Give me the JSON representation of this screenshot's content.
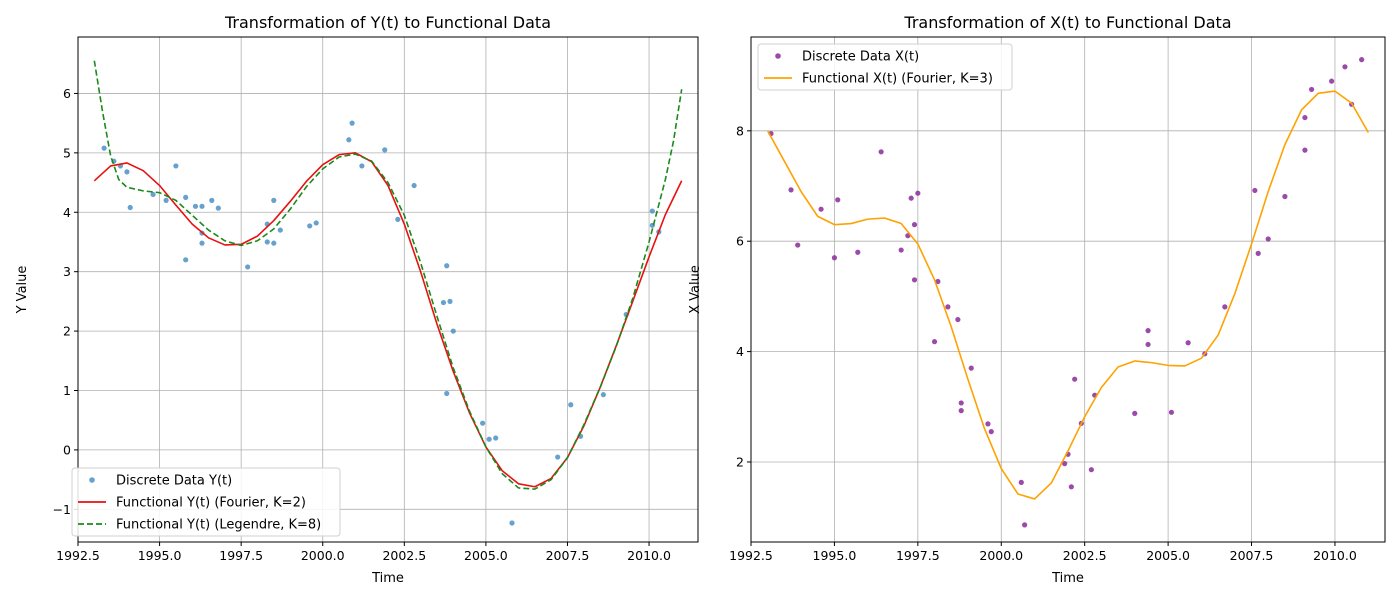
{
  "chart_data": [
    {
      "type": "scatter",
      "title": "Transformation of Y(t) to Functional Data",
      "xlabel": "Time",
      "ylabel": "Y Value",
      "xlim": [
        1992.5,
        2011.5
      ],
      "ylim": [
        -1.55,
        6.95
      ],
      "xticks": [
        1992.5,
        1995.0,
        1997.5,
        2000.0,
        2002.5,
        2005.0,
        2007.5,
        2010.0
      ],
      "xtick_labels": [
        "1992.5",
        "1995.0",
        "1997.5",
        "2000.0",
        "2002.5",
        "2005.0",
        "2007.5",
        "2010.0"
      ],
      "yticks": [
        -1,
        0,
        1,
        2,
        3,
        4,
        5,
        6
      ],
      "ytick_labels": [
        "−1",
        "0",
        "1",
        "2",
        "3",
        "4",
        "5",
        "6"
      ],
      "grid": true,
      "legend_position": "lower-left",
      "series": [
        {
          "name": "Discrete Data Y(t)",
          "kind": "scatter",
          "color": "#4c91c4",
          "points": [
            [
              1993.3,
              5.08
            ],
            [
              1993.6,
              4.86
            ],
            [
              1993.8,
              4.78
            ],
            [
              1994.0,
              4.68
            ],
            [
              1994.1,
              4.08
            ],
            [
              1994.8,
              4.3
            ],
            [
              1995.2,
              4.2
            ],
            [
              1995.5,
              4.78
            ],
            [
              1995.8,
              4.25
            ],
            [
              1995.8,
              3.2
            ],
            [
              1996.1,
              4.1
            ],
            [
              1996.3,
              4.1
            ],
            [
              1996.3,
              3.65
            ],
            [
              1996.3,
              3.48
            ],
            [
              1996.6,
              4.2
            ],
            [
              1996.8,
              4.07
            ],
            [
              1997.7,
              3.08
            ],
            [
              1998.3,
              3.5
            ],
            [
              1998.3,
              3.8
            ],
            [
              1998.5,
              4.2
            ],
            [
              1998.5,
              3.48
            ],
            [
              1998.7,
              3.7
            ],
            [
              1999.6,
              3.77
            ],
            [
              1999.8,
              3.82
            ],
            [
              2000.8,
              5.22
            ],
            [
              2000.9,
              5.5
            ],
            [
              2001.2,
              4.78
            ],
            [
              2001.9,
              5.05
            ],
            [
              2002.3,
              3.88
            ],
            [
              2002.8,
              4.45
            ],
            [
              2003.8,
              3.1
            ],
            [
              2003.7,
              2.48
            ],
            [
              2003.8,
              0.95
            ],
            [
              2003.9,
              2.5
            ],
            [
              2004.0,
              2.0
            ],
            [
              2004.9,
              0.45
            ],
            [
              2005.1,
              0.18
            ],
            [
              2005.3,
              0.2
            ],
            [
              2005.8,
              -1.23
            ],
            [
              2007.2,
              -0.12
            ],
            [
              2007.6,
              0.76
            ],
            [
              2007.9,
              0.23
            ],
            [
              2008.6,
              0.93
            ],
            [
              2009.3,
              2.28
            ],
            [
              2010.1,
              4.02
            ],
            [
              2010.1,
              3.78
            ],
            [
              2010.3,
              3.67
            ]
          ]
        },
        {
          "name": "Functional Y(t) (Fourier, K=2)",
          "kind": "line",
          "color": "#e8110f",
          "dash": "solid",
          "x": [
            1993.0,
            1993.5,
            1994.0,
            1994.5,
            1995.0,
            1995.5,
            1996.0,
            1996.5,
            1997.0,
            1997.5,
            1998.0,
            1998.5,
            1999.0,
            1999.5,
            2000.0,
            2000.5,
            2001.0,
            2001.5,
            2002.0,
            2002.5,
            2003.0,
            2003.5,
            2004.0,
            2004.5,
            2005.0,
            2005.5,
            2006.0,
            2006.5,
            2007.0,
            2007.5,
            2008.0,
            2008.5,
            2009.0,
            2009.5,
            2010.0,
            2010.5,
            2011.0
          ],
          "y": [
            4.53,
            4.78,
            4.83,
            4.7,
            4.45,
            4.12,
            3.8,
            3.57,
            3.45,
            3.46,
            3.6,
            3.86,
            4.18,
            4.52,
            4.8,
            4.97,
            5.0,
            4.85,
            4.45,
            3.8,
            3.0,
            2.12,
            1.32,
            0.62,
            0.05,
            -0.35,
            -0.57,
            -0.62,
            -0.48,
            -0.13,
            0.4,
            1.05,
            1.76,
            2.5,
            3.25,
            3.96,
            4.53
          ]
        },
        {
          "name": "Functional Y(t) (Legendre, K=8)",
          "kind": "line",
          "color": "#1a8a1a",
          "dash": "dashed",
          "x": [
            1993.0,
            1993.25,
            1993.5,
            1993.75,
            1994.0,
            1994.5,
            1995.0,
            1995.5,
            1996.0,
            1996.5,
            1997.0,
            1997.5,
            1998.0,
            1998.5,
            1999.0,
            1999.5,
            2000.0,
            2000.5,
            2001.0,
            2001.5,
            2002.0,
            2002.5,
            2003.0,
            2003.5,
            2004.0,
            2004.5,
            2005.0,
            2005.5,
            2006.0,
            2006.5,
            2007.0,
            2007.5,
            2008.0,
            2008.5,
            2009.0,
            2009.5,
            2010.0,
            2010.5,
            2010.75,
            2011.0
          ],
          "y": [
            6.55,
            5.7,
            4.95,
            4.55,
            4.42,
            4.36,
            4.33,
            4.2,
            3.95,
            3.7,
            3.52,
            3.44,
            3.52,
            3.72,
            4.05,
            4.43,
            4.73,
            4.93,
            4.98,
            4.86,
            4.5,
            3.95,
            3.15,
            2.25,
            1.38,
            0.65,
            0.05,
            -0.4,
            -0.64,
            -0.66,
            -0.5,
            -0.13,
            0.42,
            1.05,
            1.75,
            2.55,
            3.5,
            4.55,
            5.2,
            6.07
          ]
        }
      ]
    },
    {
      "type": "scatter",
      "title": "Transformation of X(t) to Functional Data",
      "xlabel": "Time",
      "ylabel": "X Value",
      "xlim": [
        1992.5,
        2011.5
      ],
      "ylim": [
        0.55,
        9.7
      ],
      "xticks": [
        1992.5,
        1995.0,
        1997.5,
        2000.0,
        2002.5,
        2005.0,
        2007.5,
        2010.0
      ],
      "xtick_labels": [
        "1992.5",
        "1995.0",
        "1997.5",
        "2000.0",
        "2002.5",
        "2005.0",
        "2007.5",
        "2010.0"
      ],
      "yticks": [
        2,
        4,
        6,
        8
      ],
      "ytick_labels": [
        "2",
        "4",
        "6",
        "8"
      ],
      "grid": true,
      "legend_position": "upper-left",
      "series": [
        {
          "name": "Discrete Data X(t)",
          "kind": "scatter",
          "color": "#8b2a9b",
          "points": [
            [
              1993.1,
              7.95
            ],
            [
              1993.7,
              6.93
            ],
            [
              1993.9,
              5.93
            ],
            [
              1994.6,
              6.58
            ],
            [
              1995.0,
              5.7
            ],
            [
              1995.1,
              6.75
            ],
            [
              1995.7,
              5.8
            ],
            [
              1996.4,
              7.62
            ],
            [
              1997.0,
              5.84
            ],
            [
              1997.2,
              6.1
            ],
            [
              1997.3,
              6.78
            ],
            [
              1997.4,
              6.3
            ],
            [
              1997.4,
              5.3
            ],
            [
              1997.5,
              6.87
            ],
            [
              1998.0,
              4.18
            ],
            [
              1998.1,
              5.27
            ],
            [
              1998.4,
              4.81
            ],
            [
              1998.7,
              4.58
            ],
            [
              1998.8,
              3.07
            ],
            [
              1998.8,
              2.93
            ],
            [
              1999.1,
              3.7
            ],
            [
              1999.6,
              2.69
            ],
            [
              1999.7,
              2.55
            ],
            [
              2000.6,
              1.63
            ],
            [
              2000.7,
              0.86
            ],
            [
              2001.9,
              1.97
            ],
            [
              2002.0,
              2.14
            ],
            [
              2002.1,
              1.55
            ],
            [
              2002.2,
              3.5
            ],
            [
              2002.4,
              2.7
            ],
            [
              2002.7,
              1.86
            ],
            [
              2002.8,
              3.21
            ],
            [
              2004.0,
              2.88
            ],
            [
              2004.4,
              4.13
            ],
            [
              2004.4,
              4.38
            ],
            [
              2005.1,
              2.9
            ],
            [
              2005.6,
              4.16
            ],
            [
              2006.1,
              3.96
            ],
            [
              2006.7,
              4.81
            ],
            [
              2007.6,
              6.92
            ],
            [
              2007.7,
              5.78
            ],
            [
              2008.0,
              6.04
            ],
            [
              2008.5,
              6.81
            ],
            [
              2009.1,
              7.65
            ],
            [
              2009.1,
              8.24
            ],
            [
              2009.3,
              8.75
            ],
            [
              2009.9,
              8.9
            ],
            [
              2010.3,
              9.16
            ],
            [
              2010.5,
              8.48
            ],
            [
              2010.8,
              9.29
            ]
          ]
        },
        {
          "name": "Functional X(t) (Fourier, K=3)",
          "kind": "line",
          "color": "#ffa200",
          "dash": "solid",
          "x": [
            1993.0,
            1993.5,
            1994.0,
            1994.5,
            1995.0,
            1995.5,
            1996.0,
            1996.5,
            1997.0,
            1997.5,
            1998.0,
            1998.5,
            1999.0,
            1999.5,
            2000.0,
            2000.5,
            2001.0,
            2001.5,
            2002.0,
            2002.5,
            2003.0,
            2003.5,
            2004.0,
            2004.5,
            2005.0,
            2005.5,
            2006.0,
            2006.5,
            2007.0,
            2007.5,
            2008.0,
            2008.5,
            2009.0,
            2009.5,
            2010.0,
            2010.5,
            2011.0
          ],
          "y": [
            8.0,
            7.45,
            6.9,
            6.45,
            6.3,
            6.32,
            6.4,
            6.42,
            6.32,
            5.95,
            5.3,
            4.45,
            3.5,
            2.6,
            1.88,
            1.42,
            1.33,
            1.62,
            2.2,
            2.82,
            3.35,
            3.72,
            3.83,
            3.8,
            3.75,
            3.74,
            3.88,
            4.3,
            5.05,
            5.95,
            6.9,
            7.75,
            8.38,
            8.68,
            8.72,
            8.5,
            7.97
          ]
        }
      ]
    }
  ]
}
